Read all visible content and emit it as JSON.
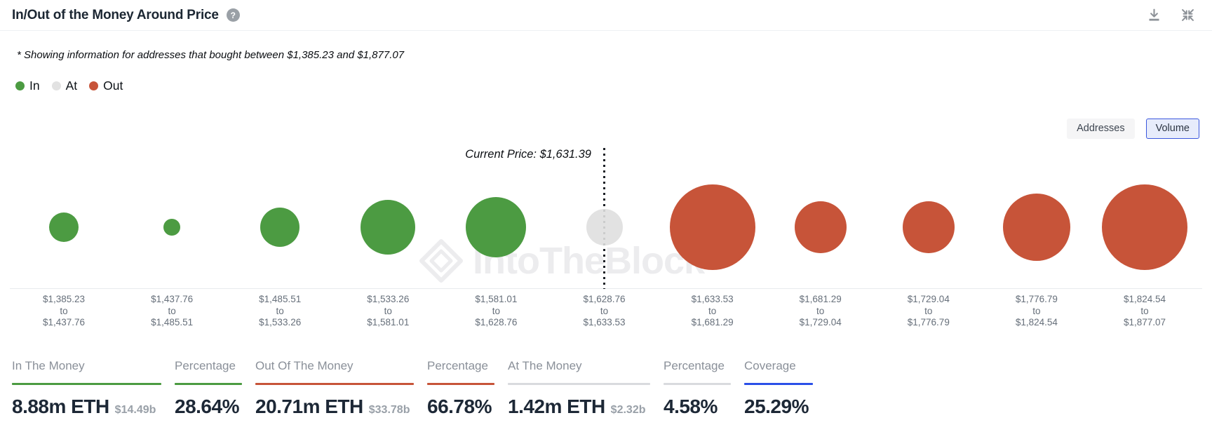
{
  "header": {
    "title": "In/Out of the Money Around Price",
    "help_icon": "question-mark-icon",
    "actions": [
      "download-icon",
      "collapse-icon"
    ]
  },
  "subtitle": "* Showing information for addresses that bought between $1,385.23 and $1,877.07",
  "legend": [
    {
      "label": "In",
      "color": "#4c9b42"
    },
    {
      "label": "At",
      "color": "#e2e2e2"
    },
    {
      "label": "Out",
      "color": "#c75439"
    }
  ],
  "toggle": {
    "options": [
      {
        "label": "Addresses",
        "selected": false
      },
      {
        "label": "Volume",
        "selected": true
      }
    ]
  },
  "chart_data": {
    "type": "bubble",
    "title": "In/Out of the Money Around Price",
    "current_price": 1631.39,
    "current_price_label": "Current Price: $1,631.39",
    "range_separator": "to",
    "price_range_low": "$1,385.23",
    "price_range_high": "$1,877.07",
    "colors": {
      "in": "#4c9b42",
      "at": "#dfdfdf",
      "out": "#c75439"
    },
    "watermark": "IntoTheBlock",
    "legend_position": "top-left",
    "buckets": [
      {
        "from": "$1,385.23",
        "to": "$1,437.76",
        "status": "in",
        "radius_px": 21
      },
      {
        "from": "$1,437.76",
        "to": "$1,485.51",
        "status": "in",
        "radius_px": 12
      },
      {
        "from": "$1,485.51",
        "to": "$1,533.26",
        "status": "in",
        "radius_px": 28
      },
      {
        "from": "$1,533.26",
        "to": "$1,581.01",
        "status": "in",
        "radius_px": 39
      },
      {
        "from": "$1,581.01",
        "to": "$1,628.76",
        "status": "in",
        "radius_px": 43
      },
      {
        "from": "$1,628.76",
        "to": "$1,633.53",
        "status": "at",
        "radius_px": 26
      },
      {
        "from": "$1,633.53",
        "to": "$1,681.29",
        "status": "out",
        "radius_px": 61
      },
      {
        "from": "$1,681.29",
        "to": "$1,729.04",
        "status": "out",
        "radius_px": 37
      },
      {
        "from": "$1,729.04",
        "to": "$1,776.79",
        "status": "out",
        "radius_px": 37
      },
      {
        "from": "$1,776.79",
        "to": "$1,824.54",
        "status": "out",
        "radius_px": 48
      },
      {
        "from": "$1,824.54",
        "to": "$1,877.07",
        "status": "out",
        "radius_px": 61
      }
    ]
  },
  "stats": [
    {
      "header": "In The Money",
      "underline_color": "#4c9b42",
      "value": "8.88m ETH",
      "sub": "$14.49b"
    },
    {
      "header": "Percentage",
      "underline_color": "#4c9b42",
      "value": "28.64%",
      "sub": ""
    },
    {
      "header": "Out Of The Money",
      "underline_color": "#c75439",
      "value": "20.71m ETH",
      "sub": "$33.78b"
    },
    {
      "header": "Percentage",
      "underline_color": "#c75439",
      "value": "66.78%",
      "sub": ""
    },
    {
      "header": "At The Money",
      "underline_color": "#d9dbde",
      "value": "1.42m ETH",
      "sub": "$2.32b"
    },
    {
      "header": "Percentage",
      "underline_color": "#d9dbde",
      "value": "4.58%",
      "sub": ""
    },
    {
      "header": "Coverage",
      "underline_color": "#2b50e8",
      "value": "25.29%",
      "sub": ""
    }
  ]
}
